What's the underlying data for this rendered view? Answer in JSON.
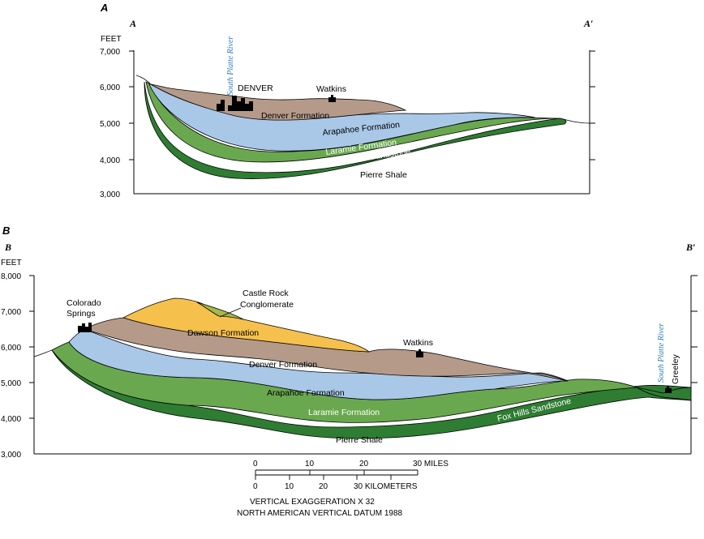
{
  "panel_a": {
    "panel_letter": "A",
    "left_end": "A",
    "right_end": "A′",
    "axis_unit": "FEET",
    "ticks": [
      "7,000",
      "6,000",
      "5,000",
      "4,000",
      "3,000"
    ],
    "river": "South Platte River",
    "city": "DENVER",
    "town": "Watkins",
    "formations": {
      "denver": "Denver Formation",
      "arapahoe": "Arapahoe Formation",
      "laramie": "Laramie Formation",
      "foxhills": "Fox Hills Sandstone",
      "pierre": "Pierre Shale"
    }
  },
  "panel_b": {
    "panel_letter": "B",
    "left_end": "B",
    "right_end": "B′",
    "axis_unit": "FEET",
    "ticks": [
      "8,000",
      "7,000",
      "6,000",
      "5,000",
      "4,000",
      "3,000"
    ],
    "river": "South Platte River",
    "city": "Colorado Springs",
    "town": "Watkins",
    "town2": "Greeley",
    "castle_rock_1": "Castle Rock",
    "castle_rock_2": "Conglomerate",
    "formations": {
      "dawson": "Dawson Formation",
      "denver": "Denver Formation",
      "arapahoe": "Arapahoe Formation",
      "laramie": "Laramie Formation",
      "foxhills": "Fox Hills Sandstone",
      "pierre": "Pierre Shale"
    }
  },
  "scale": {
    "miles_ticks": [
      "0",
      "10",
      "20",
      "30 MILES"
    ],
    "km_ticks": [
      "0",
      "10",
      "20",
      "30 KILOMETERS"
    ],
    "exaggeration": "VERTICAL EXAGGERATION X 32",
    "datum": "NORTH AMERICAN VERTICAL DATUM 1988"
  },
  "colors": {
    "denver": "#b59a8a",
    "arapahoe": "#a9c8e8",
    "laramie": "#6aa84f",
    "foxhills": "#2e7d32",
    "dawson": "#f6c04c",
    "castle_rock": "#a8b84a"
  }
}
